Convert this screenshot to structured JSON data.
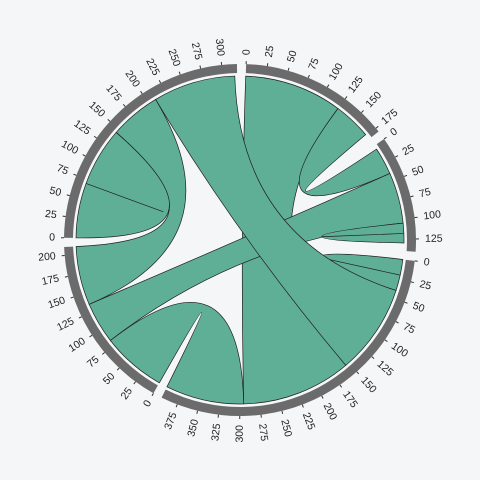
{
  "chart_data": {
    "type": "chord",
    "title": "",
    "colors": {
      "ribbon": "#5fae96",
      "ribbon_stroke": "#1f1f1f",
      "arc": "#6b6b6b",
      "background": "#f5f6f8"
    },
    "groups": [
      {
        "id": "A",
        "total": 180,
        "ticks": [
          "0",
          "25",
          "50",
          "75",
          "100",
          "125",
          "150",
          "175"
        ]
      },
      {
        "id": "B",
        "total": 140,
        "ticks": [
          "0",
          "25",
          "50",
          "75",
          "100",
          "125"
        ]
      },
      {
        "id": "C",
        "total": 395,
        "ticks": [
          "0",
          "25",
          "50",
          "75",
          "100",
          "125",
          "150",
          "175",
          "200",
          "225",
          "250",
          "275",
          "300",
          "325",
          "350",
          "375"
        ]
      },
      {
        "id": "D",
        "total": 210,
        "ticks": [
          "0",
          "25",
          "50",
          "75",
          "100",
          "125",
          "150",
          "175",
          "200"
        ]
      },
      {
        "id": "E",
        "total": 318,
        "ticks": [
          "0",
          "25",
          "50",
          "75",
          "100",
          "125",
          "150",
          "175",
          "200",
          "225",
          "250",
          "275",
          "300"
        ]
      }
    ],
    "ribbons": [
      {
        "source": "A",
        "source_range": [
          0,
          125
        ],
        "target": "C",
        "target_range": [
          155,
          295
        ]
      },
      {
        "source": "A",
        "source_range": [
          125,
          173
        ],
        "target": "B",
        "target_range": [
          5,
          40
        ]
      },
      {
        "source": "B",
        "source_range": [
          40,
          105
        ],
        "target": "D",
        "target_range": [
          82,
          135
        ]
      },
      {
        "source": "B",
        "source_range": [
          105,
          118
        ],
        "target": "B",
        "target_range": [
          118,
          130
        ]
      },
      {
        "source": "C",
        "source_range": [
          0,
          20
        ],
        "target": "C",
        "target_range": [
          20,
          40
        ]
      },
      {
        "source": "C",
        "source_range": [
          40,
          155
        ],
        "target": "E",
        "target_range": [
          210,
          315
        ]
      },
      {
        "source": "C",
        "source_range": [
          295,
          395
        ],
        "target": "D",
        "target_range": [
          0,
          82
        ]
      },
      {
        "source": "D",
        "source_range": [
          135,
          210
        ],
        "target": "E",
        "target_range": [
          145,
          210
        ]
      },
      {
        "source": "E",
        "source_range": [
          0,
          70
        ],
        "target": "E",
        "target_range": [
          70,
          145
        ]
      }
    ]
  }
}
